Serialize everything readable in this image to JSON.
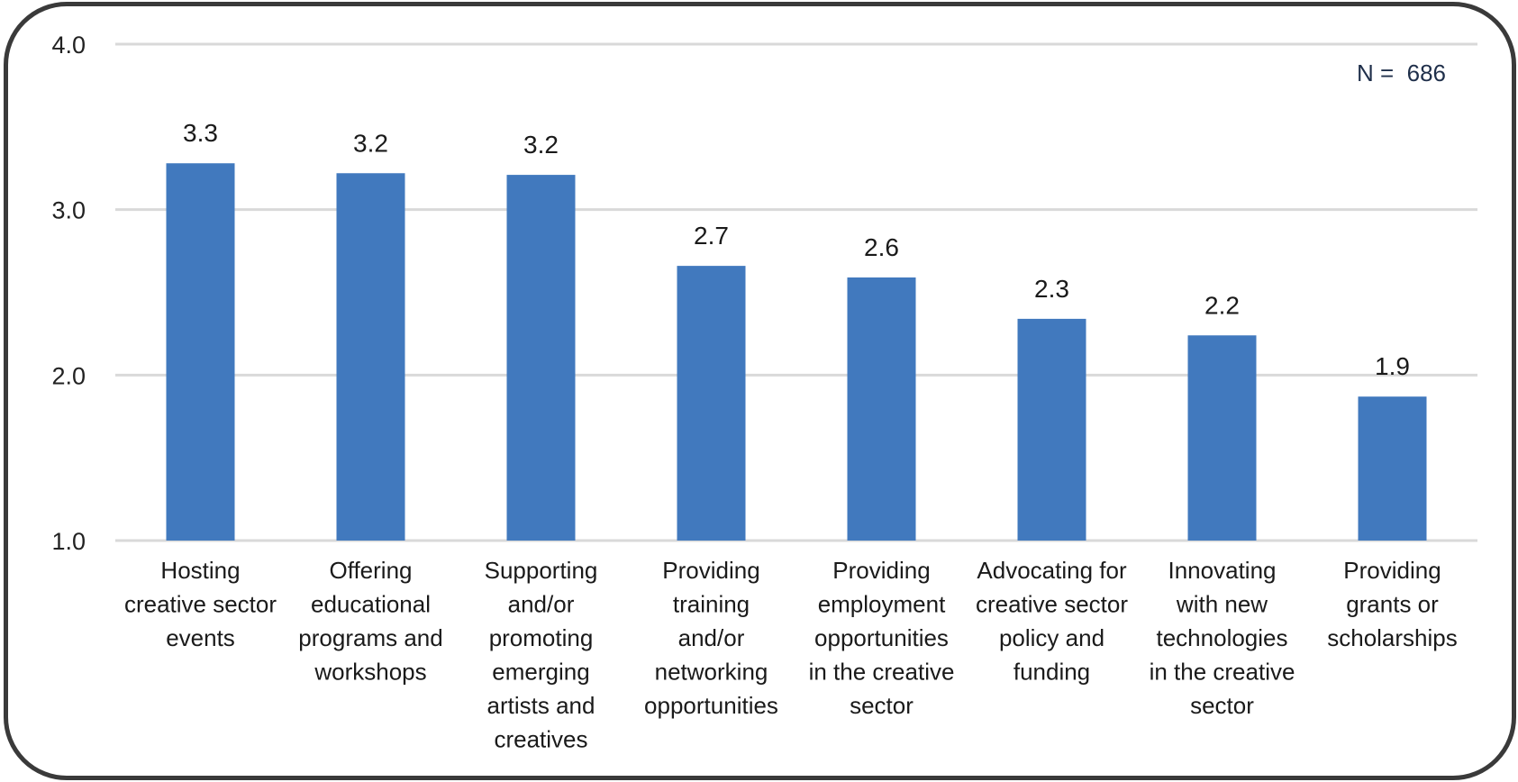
{
  "chart_data": {
    "type": "bar",
    "categories": [
      [
        "Hosting",
        "creative sector",
        "events"
      ],
      [
        "Offering",
        "educational",
        "programs and",
        "workshops"
      ],
      [
        "Supporting",
        "and/or",
        "promoting",
        "emerging",
        "artists and",
        "creatives"
      ],
      [
        "Providing",
        "training",
        "and/or",
        "networking",
        "opportunities"
      ],
      [
        "Providing",
        "employment",
        "opportunities",
        "in the creative",
        "sector"
      ],
      [
        "Advocating for",
        "creative sector",
        "policy and",
        "funding"
      ],
      [
        "Innovating",
        "with new",
        "technologies",
        "in the creative",
        "sector"
      ],
      [
        "Providing",
        "grants or",
        "scholarships"
      ]
    ],
    "values": [
      3.28,
      3.22,
      3.21,
      2.66,
      2.59,
      2.34,
      2.24,
      1.87
    ],
    "data_labels": [
      "3.3",
      "3.2",
      "3.2",
      "2.7",
      "2.6",
      "2.3",
      "2.2",
      "1.9"
    ],
    "yticks": [
      "1.0",
      "2.0",
      "3.0",
      "4.0"
    ],
    "ylim": [
      1.0,
      4.0
    ],
    "grid": true,
    "annotation": "N =  686",
    "title": "",
    "xlabel": "",
    "ylabel": "",
    "colors": {
      "bar": "#4179BE",
      "grid": "#D9D9D9",
      "frame": "#3A3A3A"
    }
  }
}
